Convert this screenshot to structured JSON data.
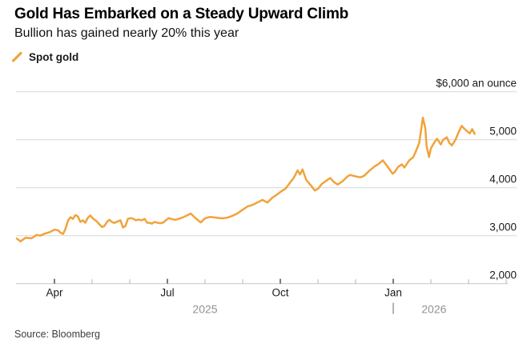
{
  "header": {
    "title": "Gold Has Embarked on a Steady Upward Climb",
    "subtitle": "Bullion has gained nearly 20% this year"
  },
  "legend": {
    "items": [
      {
        "label": "Spot gold",
        "marker": "slash-line",
        "color": "#F1A33C"
      }
    ]
  },
  "footer": {
    "source": "Source: Bloomberg"
  },
  "colors": {
    "line": "#F1A33C",
    "grid": "#d7d7d7",
    "axis_line": "#c6c6c6",
    "tick_major": "#333333",
    "tick_minor": "#b3b3b3",
    "text": "#1a1a1a",
    "secondary_text": "#8f9396"
  },
  "chart_data": {
    "type": "line",
    "title": "Gold Has Embarked on a Steady Upward Climb",
    "subtitle": "Bullion has gained nearly 20% this year",
    "grid": "horizontal",
    "legend_position": "top-left",
    "y_axis": {
      "min": 2000,
      "max": 6000,
      "ticks": [
        {
          "value": 6000,
          "label": "$6,000 an ounce"
        },
        {
          "value": 5000,
          "label": "5,000"
        },
        {
          "value": 4000,
          "label": "4,000"
        },
        {
          "value": 3000,
          "label": "3,000"
        },
        {
          "value": 2000,
          "label": "2,000"
        }
      ]
    },
    "x_axis": {
      "start": "2025-03-01",
      "end": "2026-04-01",
      "major_ticks": [
        {
          "date": "2025-04-01",
          "label": "Apr"
        },
        {
          "date": "2025-07-01",
          "label": "Jul"
        },
        {
          "date": "2025-10-01",
          "label": "Oct"
        },
        {
          "date": "2026-01-01",
          "label": "Jan"
        }
      ],
      "minor_ticks": [
        "2025-05-01",
        "2025-06-01",
        "2025-08-01",
        "2025-09-01",
        "2025-11-01",
        "2025-12-01",
        "2026-02-01",
        "2026-03-01",
        "2026-04-01"
      ],
      "year_divider": "2026-01-01",
      "year_labels": [
        {
          "label": "2025",
          "from": "2025-03-01",
          "to": "2026-01-01"
        },
        {
          "label": "2026",
          "from": "2026-01-01",
          "to": "2026-03-06"
        }
      ]
    },
    "series": [
      {
        "name": "Spot gold",
        "color": "#F1A33C",
        "points": [
          [
            "2025-03-01",
            2940
          ],
          [
            "2025-03-04",
            2880
          ],
          [
            "2025-03-08",
            2955
          ],
          [
            "2025-03-13",
            2945
          ],
          [
            "2025-03-17",
            3015
          ],
          [
            "2025-03-20",
            3000
          ],
          [
            "2025-03-24",
            3045
          ],
          [
            "2025-03-28",
            3075
          ],
          [
            "2025-04-01",
            3125
          ],
          [
            "2025-04-04",
            3110
          ],
          [
            "2025-04-06",
            3060
          ],
          [
            "2025-04-08",
            3035
          ],
          [
            "2025-04-10",
            3150
          ],
          [
            "2025-04-12",
            3315
          ],
          [
            "2025-04-14",
            3385
          ],
          [
            "2025-04-16",
            3350
          ],
          [
            "2025-04-18",
            3430
          ],
          [
            "2025-04-20",
            3400
          ],
          [
            "2025-04-22",
            3285
          ],
          [
            "2025-04-24",
            3320
          ],
          [
            "2025-04-26",
            3270
          ],
          [
            "2025-04-28",
            3370
          ],
          [
            "2025-04-30",
            3420
          ],
          [
            "2025-05-02",
            3350
          ],
          [
            "2025-05-04",
            3315
          ],
          [
            "2025-05-07",
            3235
          ],
          [
            "2025-05-09",
            3180
          ],
          [
            "2025-05-11",
            3200
          ],
          [
            "2025-05-13",
            3285
          ],
          [
            "2025-05-15",
            3330
          ],
          [
            "2025-05-17",
            3285
          ],
          [
            "2025-05-19",
            3265
          ],
          [
            "2025-05-22",
            3300
          ],
          [
            "2025-05-24",
            3320
          ],
          [
            "2025-05-26",
            3170
          ],
          [
            "2025-05-28",
            3200
          ],
          [
            "2025-05-30",
            3350
          ],
          [
            "2025-06-02",
            3365
          ],
          [
            "2025-06-04",
            3350
          ],
          [
            "2025-06-06",
            3320
          ],
          [
            "2025-06-08",
            3335
          ],
          [
            "2025-06-11",
            3320
          ],
          [
            "2025-06-13",
            3350
          ],
          [
            "2025-06-15",
            3270
          ],
          [
            "2025-06-17",
            3265
          ],
          [
            "2025-06-19",
            3250
          ],
          [
            "2025-06-21",
            3285
          ],
          [
            "2025-06-24",
            3265
          ],
          [
            "2025-06-26",
            3260
          ],
          [
            "2025-06-28",
            3270
          ],
          [
            "2025-06-30",
            3315
          ],
          [
            "2025-07-02",
            3365
          ],
          [
            "2025-07-04",
            3350
          ],
          [
            "2025-07-07",
            3330
          ],
          [
            "2025-07-09",
            3340
          ],
          [
            "2025-07-13",
            3375
          ],
          [
            "2025-07-16",
            3410
          ],
          [
            "2025-07-20",
            3460
          ],
          [
            "2025-07-24",
            3360
          ],
          [
            "2025-07-28",
            3275
          ],
          [
            "2025-08-01",
            3360
          ],
          [
            "2025-08-05",
            3390
          ],
          [
            "2025-08-10",
            3375
          ],
          [
            "2025-08-15",
            3360
          ],
          [
            "2025-08-19",
            3375
          ],
          [
            "2025-08-23",
            3410
          ],
          [
            "2025-08-27",
            3460
          ],
          [
            "2025-09-01",
            3540
          ],
          [
            "2025-09-05",
            3610
          ],
          [
            "2025-09-09",
            3640
          ],
          [
            "2025-09-13",
            3690
          ],
          [
            "2025-09-17",
            3745
          ],
          [
            "2025-09-21",
            3690
          ],
          [
            "2025-09-25",
            3790
          ],
          [
            "2025-09-29",
            3860
          ],
          [
            "2025-10-01",
            3910
          ],
          [
            "2025-10-05",
            3975
          ],
          [
            "2025-10-08",
            4075
          ],
          [
            "2025-10-12",
            4210
          ],
          [
            "2025-10-15",
            4360
          ],
          [
            "2025-10-17",
            4275
          ],
          [
            "2025-10-19",
            4380
          ],
          [
            "2025-10-22",
            4160
          ],
          [
            "2025-10-26",
            4040
          ],
          [
            "2025-10-29",
            3940
          ],
          [
            "2025-11-01",
            3975
          ],
          [
            "2025-11-04",
            4075
          ],
          [
            "2025-11-08",
            4150
          ],
          [
            "2025-11-11",
            4200
          ],
          [
            "2025-11-14",
            4115
          ],
          [
            "2025-11-17",
            4065
          ],
          [
            "2025-11-21",
            4135
          ],
          [
            "2025-11-25",
            4235
          ],
          [
            "2025-11-27",
            4265
          ],
          [
            "2025-12-01",
            4235
          ],
          [
            "2025-12-05",
            4215
          ],
          [
            "2025-12-08",
            4250
          ],
          [
            "2025-12-12",
            4350
          ],
          [
            "2025-12-16",
            4435
          ],
          [
            "2025-12-20",
            4500
          ],
          [
            "2025-12-23",
            4570
          ],
          [
            "2025-12-27",
            4435
          ],
          [
            "2025-12-31",
            4290
          ],
          [
            "2026-01-02",
            4320
          ],
          [
            "2026-01-05",
            4435
          ],
          [
            "2026-01-08",
            4485
          ],
          [
            "2026-01-10",
            4420
          ],
          [
            "2026-01-14",
            4570
          ],
          [
            "2026-01-17",
            4630
          ],
          [
            "2026-01-19",
            4735
          ],
          [
            "2026-01-22",
            4930
          ],
          [
            "2026-01-25",
            5460
          ],
          [
            "2026-01-27",
            5230
          ],
          [
            "2026-01-28",
            4870
          ],
          [
            "2026-01-30",
            4640
          ],
          [
            "2026-02-01",
            4820
          ],
          [
            "2026-02-04",
            4950
          ],
          [
            "2026-02-06",
            5020
          ],
          [
            "2026-02-09",
            4900
          ],
          [
            "2026-02-11",
            5000
          ],
          [
            "2026-02-14",
            5050
          ],
          [
            "2026-02-16",
            4930
          ],
          [
            "2026-02-18",
            4880
          ],
          [
            "2026-02-21",
            5000
          ],
          [
            "2026-02-23",
            5130
          ],
          [
            "2026-02-26",
            5290
          ],
          [
            "2026-02-28",
            5230
          ],
          [
            "2026-03-02",
            5130
          ],
          [
            "2026-03-04",
            5220
          ],
          [
            "2026-03-06",
            5120
          ]
        ]
      }
    ]
  }
}
